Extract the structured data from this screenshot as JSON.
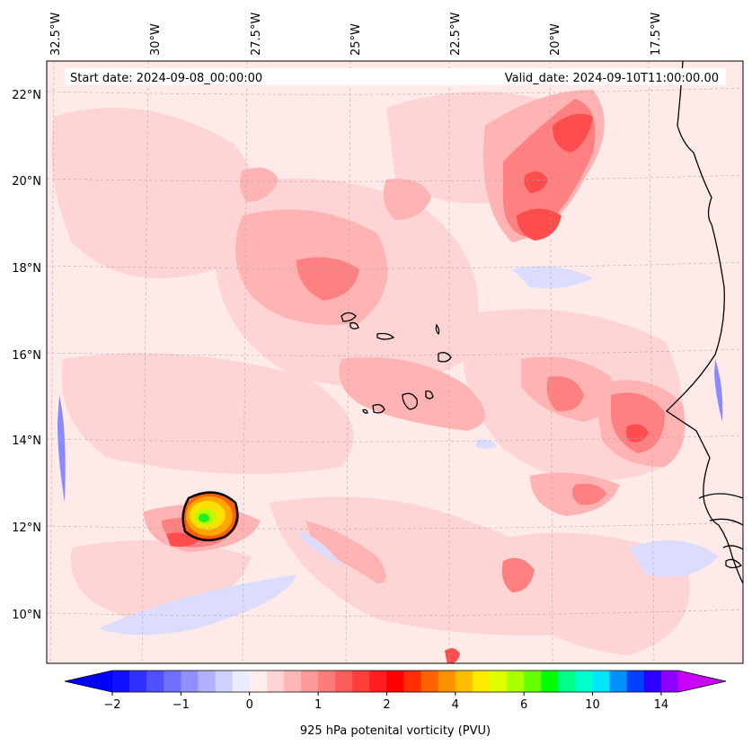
{
  "header": {
    "start_date": "Start date: 2024-09-08_00:00:00",
    "valid_date": "Valid_date: 2024-09-10T11:00:00.00"
  },
  "axes": {
    "lon_labels": [
      "32.5°W",
      "30°W",
      "27.5°W",
      "25°W",
      "22.5°W",
      "20°W",
      "17.5°W"
    ],
    "lat_labels": [
      "22°N",
      "20°N",
      "18°N",
      "16°N",
      "14°N",
      "12°N",
      "10°N"
    ]
  },
  "colorbar": {
    "label": "925 hPa potenital vorticity (PVU)",
    "ticks": [
      "−2",
      "−1",
      "0",
      "1",
      "2",
      "4",
      "6",
      "10",
      "14"
    ],
    "colors": [
      "#1010ff",
      "#3030ff",
      "#5050ff",
      "#7070ff",
      "#9090ff",
      "#b0b0ff",
      "#d0d0ff",
      "#ececff",
      "#ffeeee",
      "#ffd4d4",
      "#ffb6b6",
      "#ff9999",
      "#ff7b7b",
      "#ff5c5c",
      "#ff3d3d",
      "#ff1e1e",
      "#ff0000",
      "#ff3000",
      "#ff6000",
      "#ff9000",
      "#ffbd00",
      "#ffeb00",
      "#ddff00",
      "#aaff00",
      "#66ff00",
      "#00ff00",
      "#00ff88",
      "#00ffcc",
      "#00e5ff",
      "#0090ff",
      "#0040ff",
      "#2b00ff",
      "#9000ff"
    ],
    "under_color": "#0000ff",
    "over_color": "#cc00ff"
  },
  "map_colors": {
    "background": "#ffeaea",
    "light": "#ffd4d4",
    "medium": "#ffb3b3",
    "strong": "#ff8080",
    "deep": "#ff4d4d",
    "core": "#ff1a1a",
    "negative": "#dcdcff",
    "negative_strong": "#8a8aff"
  }
}
